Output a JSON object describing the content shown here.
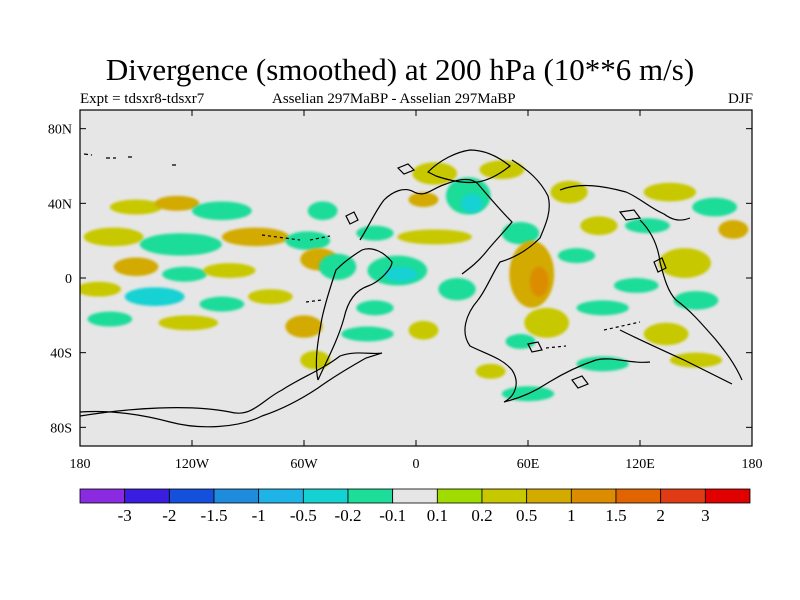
{
  "title": "Divergence (smoothed) at 200 hPa (10**6 m/s)",
  "subtitle_left": "Expt = tdsxr8-tdsxr7",
  "subtitle_center": "Asselian 297MaBP - Asselian 297MaBP",
  "subtitle_right": "DJF",
  "axes": {
    "lat_ticks": [
      {
        "value": 80,
        "label": "80N"
      },
      {
        "value": 40,
        "label": "40N"
      },
      {
        "value": 0,
        "label": "0"
      },
      {
        "value": -40,
        "label": "40S"
      },
      {
        "value": -80,
        "label": "80S"
      }
    ],
    "lon_ticks": [
      {
        "value": -180,
        "label": "180"
      },
      {
        "value": -120,
        "label": "120W"
      },
      {
        "value": -60,
        "label": "60W"
      },
      {
        "value": 0,
        "label": "0"
      },
      {
        "value": 60,
        "label": "60E"
      },
      {
        "value": 120,
        "label": "120E"
      },
      {
        "value": 180,
        "label": "180"
      }
    ],
    "lat_range": [
      -90,
      90
    ],
    "lon_range": [
      -180,
      180
    ]
  },
  "colorbar": {
    "colors": [
      "#8a2be2",
      "#3a1ee0",
      "#1450dc",
      "#1e8cdc",
      "#1eb4e6",
      "#14d2d2",
      "#1edc9a",
      "#e6e6e6",
      "#a0dc00",
      "#c8c800",
      "#d2aa00",
      "#dc8c00",
      "#e06400",
      "#e03c14",
      "#e00000"
    ],
    "labels": [
      "-3",
      "-2",
      "-1.5",
      "-1",
      "-0.5",
      "-0.2",
      "-0.1",
      "0.1",
      "0.2",
      "0.5",
      "1",
      "1.5",
      "2",
      "3"
    ]
  },
  "field_blobs": [
    {
      "lon": -150,
      "lat": 38,
      "rx": 14,
      "ry": 4,
      "level": 0.2
    },
    {
      "lon": -128,
      "lat": 40,
      "rx": 12,
      "ry": 4,
      "level": 0.5
    },
    {
      "lon": -104,
      "lat": 36,
      "rx": 16,
      "ry": 5,
      "level": -0.2
    },
    {
      "lon": -162,
      "lat": 22,
      "rx": 16,
      "ry": 5,
      "level": 0.2
    },
    {
      "lon": -126,
      "lat": 18,
      "rx": 22,
      "ry": 6,
      "level": -0.2
    },
    {
      "lon": -86,
      "lat": 22,
      "rx": 18,
      "ry": 5,
      "level": 0.5
    },
    {
      "lon": -58,
      "lat": 20,
      "rx": 12,
      "ry": 5,
      "level": -0.2
    },
    {
      "lon": -150,
      "lat": 6,
      "rx": 12,
      "ry": 5,
      "level": 0.5
    },
    {
      "lon": -124,
      "lat": 2,
      "rx": 12,
      "ry": 4,
      "level": -0.2
    },
    {
      "lon": -100,
      "lat": 4,
      "rx": 14,
      "ry": 4,
      "level": 0.2
    },
    {
      "lon": -170,
      "lat": -6,
      "rx": 12,
      "ry": 4,
      "level": 0.2
    },
    {
      "lon": -140,
      "lat": -10,
      "rx": 16,
      "ry": 5,
      "level": -0.5
    },
    {
      "lon": -104,
      "lat": -14,
      "rx": 12,
      "ry": 4,
      "level": -0.2
    },
    {
      "lon": -78,
      "lat": -10,
      "rx": 12,
      "ry": 4,
      "level": 0.2
    },
    {
      "lon": -164,
      "lat": -22,
      "rx": 12,
      "ry": 4,
      "level": -0.2
    },
    {
      "lon": -122,
      "lat": -24,
      "rx": 16,
      "ry": 4,
      "level": 0.2
    },
    {
      "lon": -52,
      "lat": 10,
      "rx": 10,
      "ry": 6,
      "level": 0.5
    },
    {
      "lon": -42,
      "lat": 6,
      "rx": 10,
      "ry": 7,
      "level": -0.2
    },
    {
      "lon": -10,
      "lat": 4,
      "rx": 16,
      "ry": 8,
      "level": -0.2
    },
    {
      "lon": -8,
      "lat": 2,
      "rx": 9,
      "ry": 4,
      "level": -0.5
    },
    {
      "lon": 22,
      "lat": -6,
      "rx": 10,
      "ry": 6,
      "level": -0.2
    },
    {
      "lon": 10,
      "lat": 22,
      "rx": 20,
      "ry": 4,
      "level": 0.2
    },
    {
      "lon": -22,
      "lat": 24,
      "rx": 10,
      "ry": 4,
      "level": -0.2
    },
    {
      "lon": -22,
      "lat": -16,
      "rx": 10,
      "ry": 4,
      "level": -0.2
    },
    {
      "lon": -60,
      "lat": -26,
      "rx": 10,
      "ry": 6,
      "level": 0.5
    },
    {
      "lon": -54,
      "lat": -44,
      "rx": 8,
      "ry": 5,
      "level": 0.2
    },
    {
      "lon": -26,
      "lat": -30,
      "rx": 14,
      "ry": 4,
      "level": -0.2
    },
    {
      "lon": 4,
      "lat": -28,
      "rx": 8,
      "ry": 5,
      "level": 0.2
    },
    {
      "lon": 28,
      "lat": 44,
      "rx": 12,
      "ry": 10,
      "level": -0.2
    },
    {
      "lon": 30,
      "lat": 40,
      "rx": 6,
      "ry": 5,
      "level": -0.5
    },
    {
      "lon": 10,
      "lat": 56,
      "rx": 12,
      "ry": 6,
      "level": 0.2
    },
    {
      "lon": 46,
      "lat": 58,
      "rx": 12,
      "ry": 5,
      "level": 0.2
    },
    {
      "lon": 56,
      "lat": 24,
      "rx": 10,
      "ry": 6,
      "level": -0.2
    },
    {
      "lon": 82,
      "lat": 46,
      "rx": 10,
      "ry": 6,
      "level": 0.2
    },
    {
      "lon": 62,
      "lat": 2,
      "rx": 12,
      "ry": 18,
      "level": 0.5
    },
    {
      "lon": 86,
      "lat": 12,
      "rx": 10,
      "ry": 4,
      "level": -0.2
    },
    {
      "lon": 70,
      "lat": -24,
      "rx": 12,
      "ry": 8,
      "level": 0.2
    },
    {
      "lon": 56,
      "lat": -34,
      "rx": 8,
      "ry": 4,
      "level": -0.2
    },
    {
      "lon": 98,
      "lat": 28,
      "rx": 10,
      "ry": 5,
      "level": 0.2
    },
    {
      "lon": 136,
      "lat": 46,
      "rx": 14,
      "ry": 5,
      "level": 0.2
    },
    {
      "lon": 160,
      "lat": 38,
      "rx": 12,
      "ry": 5,
      "level": -0.2
    },
    {
      "lon": 124,
      "lat": 28,
      "rx": 12,
      "ry": 4,
      "level": -0.2
    },
    {
      "lon": 170,
      "lat": 26,
      "rx": 8,
      "ry": 5,
      "level": 0.5
    },
    {
      "lon": 144,
      "lat": 8,
      "rx": 14,
      "ry": 8,
      "level": 0.2
    },
    {
      "lon": 118,
      "lat": -4,
      "rx": 12,
      "ry": 4,
      "level": -0.2
    },
    {
      "lon": 100,
      "lat": -16,
      "rx": 14,
      "ry": 4,
      "level": -0.2
    },
    {
      "lon": 150,
      "lat": -12,
      "rx": 12,
      "ry": 5,
      "level": -0.2
    },
    {
      "lon": 134,
      "lat": -30,
      "rx": 12,
      "ry": 6,
      "level": 0.2
    },
    {
      "lon": 100,
      "lat": -46,
      "rx": 14,
      "ry": 4,
      "level": -0.2
    },
    {
      "lon": 150,
      "lat": -44,
      "rx": 14,
      "ry": 4,
      "level": 0.2
    },
    {
      "lon": 60,
      "lat": -62,
      "rx": 14,
      "ry": 4,
      "level": -0.2
    },
    {
      "lon": 40,
      "lat": -50,
      "rx": 8,
      "ry": 4,
      "level": 0.2
    },
    {
      "lon": -50,
      "lat": 36,
      "rx": 8,
      "ry": 5,
      "level": -0.2
    },
    {
      "lon": 4,
      "lat": 42,
      "rx": 8,
      "ry": 4,
      "level": 0.5
    },
    {
      "lon": 66,
      "lat": -2,
      "rx": 5,
      "ry": 8,
      "level": 1
    }
  ]
}
